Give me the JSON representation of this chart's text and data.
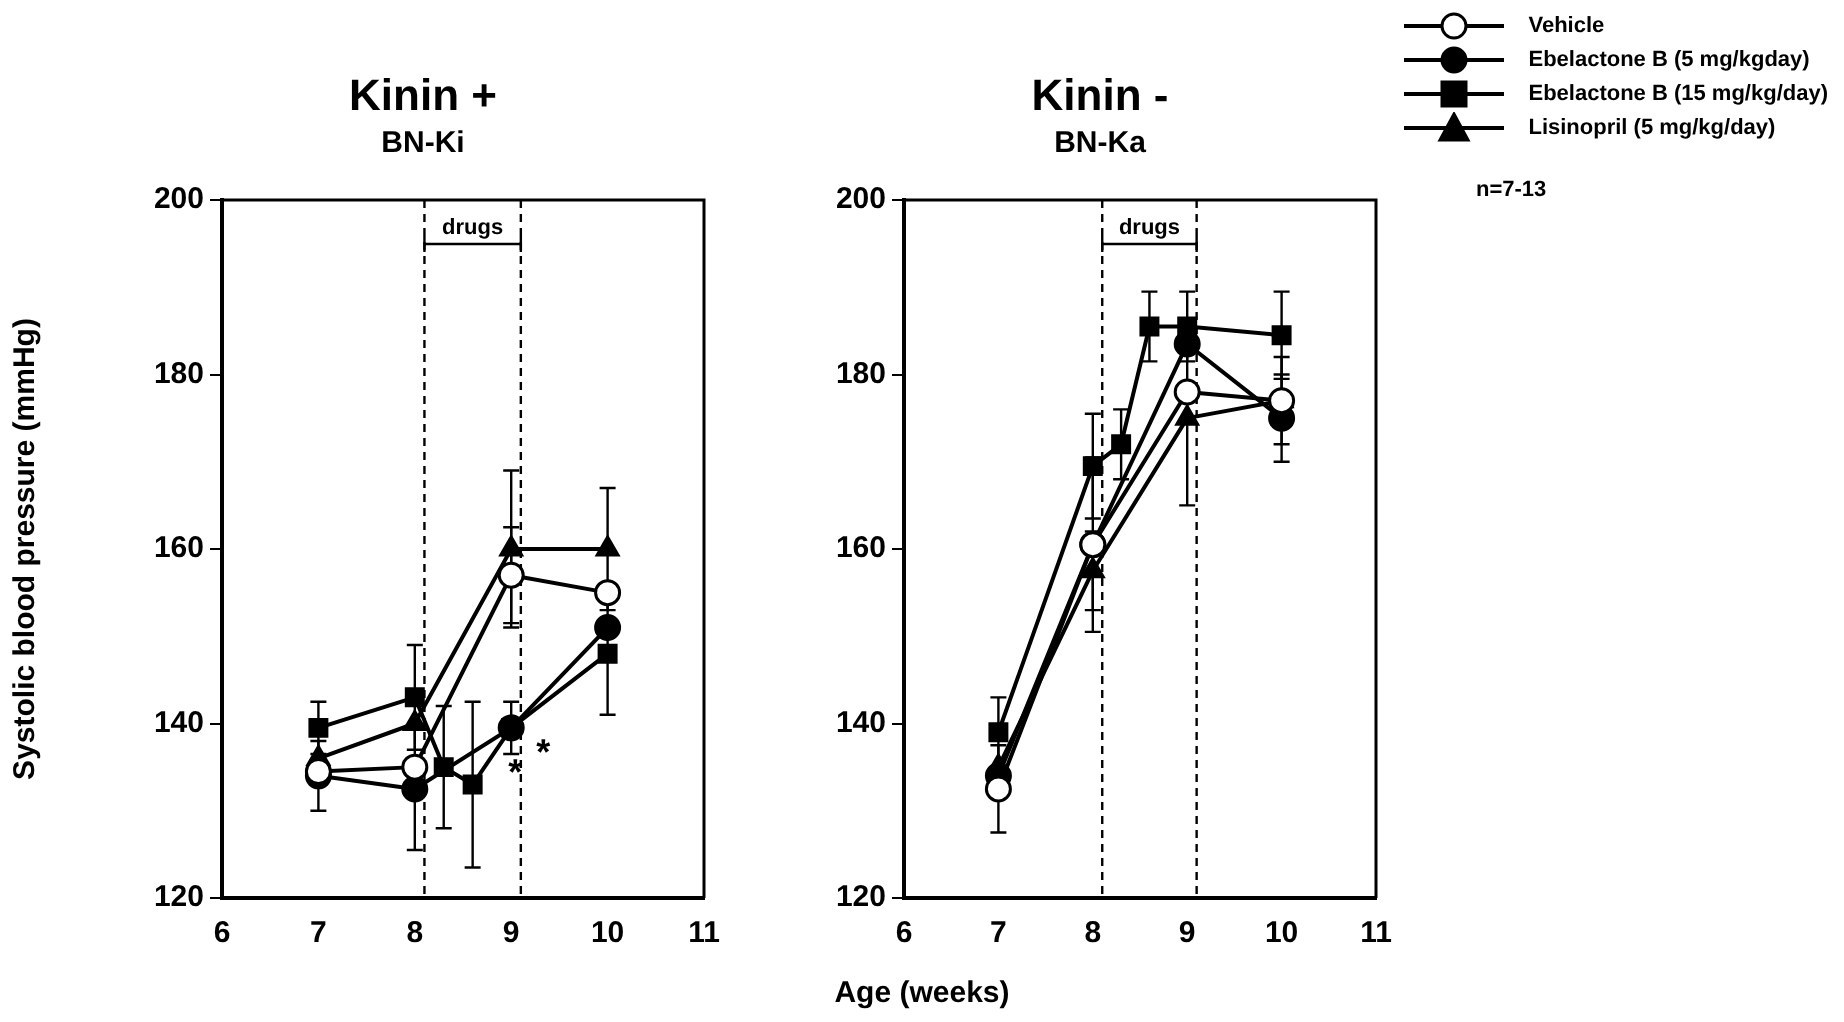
{
  "chart_data": [
    {
      "type": "line",
      "title": "Kinin +",
      "subtitle": "BN-Ki",
      "ylabel": "Systolic blood pressure (mmHg)",
      "xlabel": "Age (weeks)",
      "xlim": [
        6,
        11
      ],
      "xticks": [
        6,
        7,
        8,
        9,
        10,
        11
      ],
      "ylim": [
        120,
        200
      ],
      "yticks": [
        120,
        140,
        160,
        180,
        200
      ],
      "grid": false,
      "legend": false,
      "ref_lines": [
        {
          "axis": "x",
          "value": 8.1,
          "label": "drugs",
          "line_style": "dashed"
        },
        {
          "axis": "x",
          "value": 9.1,
          "line_style": "dashed"
        }
      ],
      "annotations": [
        {
          "text": "*",
          "x": 9,
          "y": 139.5
        },
        {
          "text": "*",
          "x": 9,
          "y": 139.5
        }
      ],
      "series": [
        {
          "color": "#ffffff",
          "marker": "circle",
          "x": [
            7,
            8,
            9,
            10
          ],
          "values": [
            134.5,
            135,
            157,
            155
          ],
          "errors": [
            null,
            null,
            5.5,
            null
          ]
        },
        {
          "color": "#000000",
          "marker": "circle",
          "x": [
            7,
            8,
            9,
            10
          ],
          "values": [
            134,
            132.5,
            139.5,
            151
          ],
          "errors": [
            4,
            7,
            null,
            null
          ]
        },
        {
          "color": "#000000",
          "marker": "square",
          "x": [
            7,
            8,
            8.3,
            8.6,
            9,
            10
          ],
          "values": [
            139.5,
            143,
            135,
            133,
            139.5,
            148
          ],
          "errors": [
            3,
            6,
            7,
            9.5,
            3,
            7
          ]
        },
        {
          "color": "#000000",
          "marker": "triangle",
          "x": [
            7,
            8,
            9,
            10
          ],
          "values": [
            136,
            140,
            160,
            160
          ],
          "errors": [
            null,
            null,
            9,
            7
          ]
        }
      ]
    },
    {
      "type": "line",
      "title": "Kinin -",
      "subtitle": "BN-Ka",
      "xlim": [
        6,
        11
      ],
      "xticks": [
        6,
        7,
        8,
        9,
        10,
        11
      ],
      "ylim": [
        120,
        200
      ],
      "yticks": [
        120,
        140,
        160,
        180,
        200
      ],
      "grid": false,
      "legend": "top right",
      "ref_lines": [
        {
          "axis": "x",
          "value": 8.1,
          "label": "drugs",
          "line_style": "dashed"
        },
        {
          "axis": "x",
          "value": 9.1,
          "line_style": "dashed"
        }
      ],
      "annotations": [
        "n=7-13"
      ],
      "series": [
        {
          "name": "Vehicle",
          "color": "#ffffff",
          "marker": "circle",
          "x": [
            7,
            8,
            9,
            10
          ],
          "values": [
            132.5,
            160.5,
            178,
            177
          ],
          "errors": [
            5,
            null,
            null,
            5
          ]
        },
        {
          "name": "Ebelactone B (5 mg/kgday)",
          "color": "#000000",
          "marker": "circle",
          "x": [
            7,
            8,
            9,
            10
          ],
          "values": [
            134,
            160.5,
            183.5,
            175
          ],
          "errors": [
            null,
            10,
            null,
            5
          ]
        },
        {
          "name": "Ebelactone B (15 mg/kg/day)",
          "color": "#000000",
          "marker": "square",
          "x": [
            7,
            8,
            8.3,
            8.6,
            9,
            10
          ],
          "values": [
            139,
            169.5,
            172,
            185.5,
            185.5,
            184.5
          ],
          "errors": [
            4,
            6,
            4,
            4,
            4,
            5
          ]
        },
        {
          "name": "Lisinopril (5 mg/kg/day)",
          "color": "#000000",
          "marker": "triangle",
          "x": [
            7,
            8,
            9,
            10
          ],
          "values": [
            135,
            157.5,
            175,
            177
          ],
          "errors": [
            null,
            4.5,
            10,
            null
          ]
        }
      ]
    }
  ]
}
